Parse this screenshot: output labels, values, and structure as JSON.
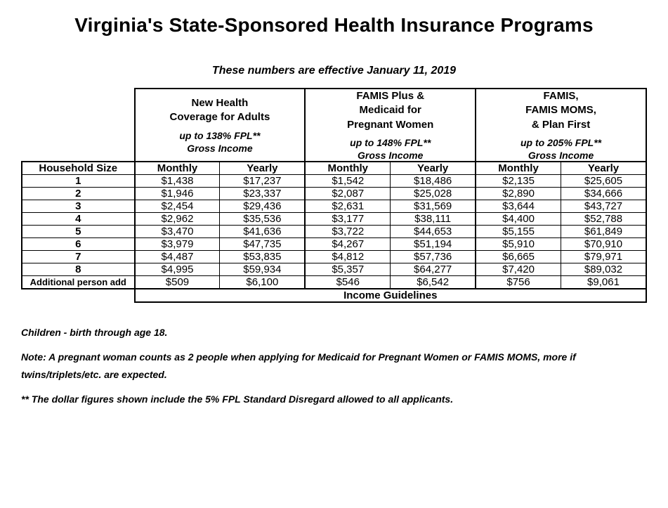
{
  "page": {
    "title": "Virginia's State-Sponsored Health Insurance Programs",
    "subtitle": "These numbers are effective January 11, 2019",
    "household_header": "Household Size",
    "monthly_label": "Monthly",
    "yearly_label": "Yearly",
    "income_guidelines_label": "Income Guidelines",
    "additional_label": "Additional person add",
    "colors": {
      "background": "#ffffff",
      "text": "#000000",
      "border": "#000000"
    }
  },
  "programs": [
    {
      "name": "New Health\nCoverage for Adults",
      "fpl_line": "up to 138% FPL**",
      "gross_line": "Gross Income"
    },
    {
      "name": "FAMIS Plus &\nMedicaid for\nPregnant Women",
      "fpl_line": "up to 148% FPL**",
      "gross_line": "Gross Income"
    },
    {
      "name": "FAMIS,\nFAMIS MOMS,\n& Plan First",
      "fpl_line": "up to 205% FPL**",
      "gross_line": "Gross Income"
    }
  ],
  "rows": [
    {
      "hh": "1",
      "v": [
        "$1,438",
        "$17,237",
        "$1,542",
        "$18,486",
        "$2,135",
        "$25,605"
      ]
    },
    {
      "hh": "2",
      "v": [
        "$1,946",
        "$23,337",
        "$2,087",
        "$25,028",
        "$2,890",
        "$34,666"
      ]
    },
    {
      "hh": "3",
      "v": [
        "$2,454",
        "$29,436",
        "$2,631",
        "$31,569",
        "$3,644",
        "$43,727"
      ]
    },
    {
      "hh": "4",
      "v": [
        "$2,962",
        "$35,536",
        "$3,177",
        "$38,111",
        "$4,400",
        "$52,788"
      ]
    },
    {
      "hh": "5",
      "v": [
        "$3,470",
        "$41,636",
        "$3,722",
        "$44,653",
        "$5,155",
        "$61,849"
      ]
    },
    {
      "hh": "6",
      "v": [
        "$3,979",
        "$47,735",
        "$4,267",
        "$51,194",
        "$5,910",
        "$70,910"
      ]
    },
    {
      "hh": "7",
      "v": [
        "$4,487",
        "$53,835",
        "$4,812",
        "$57,736",
        "$6,665",
        "$79,971"
      ]
    },
    {
      "hh": "8",
      "v": [
        "$4,995",
        "$59,934",
        "$5,357",
        "$64,277",
        "$7,420",
        "$89,032"
      ]
    }
  ],
  "additional": {
    "v": [
      "$509",
      "$6,100",
      "$546",
      "$6,542",
      "$756",
      "$9,061"
    ]
  },
  "notes": [
    "Children - birth through age 18.",
    "Note: A pregnant woman counts as 2 people when applying for Medicaid for Pregnant Women or FAMIS MOMS, more if twins/triplets/etc. are expected.",
    "** The dollar figures shown include the 5% FPL Standard Disregard allowed to all applicants."
  ]
}
